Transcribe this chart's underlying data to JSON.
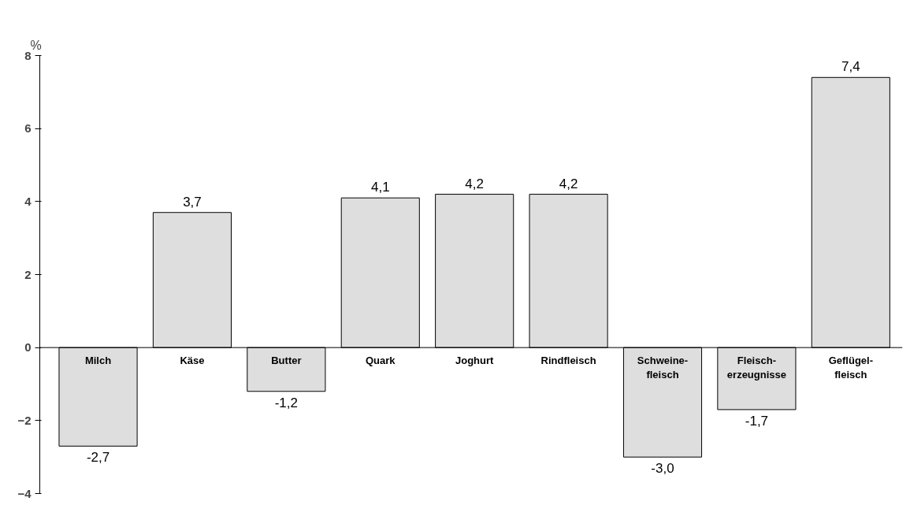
{
  "chart_data": {
    "type": "bar",
    "ylabel": "%",
    "categories": [
      "Milch",
      "Käse",
      "Butter",
      "Quark",
      "Joghurt",
      "Rindfleisch",
      "Schweine-\nfleisch",
      "Fleisch-\nerzeugnisse",
      "Geflügel-\nfleisch"
    ],
    "values": [
      -2.7,
      3.7,
      -1.2,
      4.1,
      4.2,
      4.2,
      -3.0,
      -1.7,
      7.4
    ],
    "value_labels": [
      "-2,7",
      "3,7",
      "-1,2",
      "4,1",
      "4,2",
      "4,2",
      "-3,0",
      "-1,7",
      "7,4"
    ],
    "color": "#dedede",
    "ylim": [
      -4,
      8
    ],
    "yticks": [
      -4,
      -2,
      0,
      2,
      4,
      6,
      8
    ],
    "grid": false
  }
}
